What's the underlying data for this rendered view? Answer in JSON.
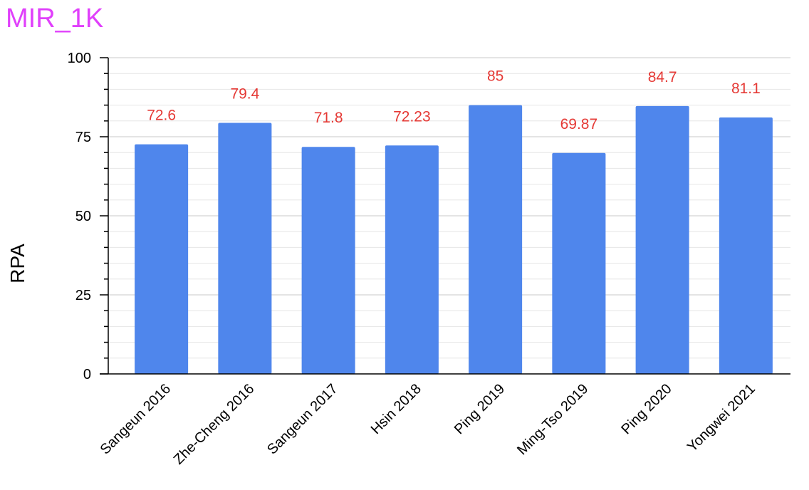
{
  "chart_data": {
    "type": "bar",
    "title": "MIR_1K",
    "xlabel": "",
    "ylabel": "RPA",
    "ylim": [
      0,
      100
    ],
    "yticks": [
      0,
      25,
      50,
      75,
      100
    ],
    "grid": true,
    "categories": [
      "Sangeun 2016",
      "Zhe-Cheng 2016",
      "Sangeun 2017",
      "Hsin 2018",
      "Ping 2019",
      "Ming-Tso 2019",
      "Ping 2020",
      "Yongwei 2021"
    ],
    "values": [
      72.6,
      79.4,
      71.8,
      72.23,
      85,
      69.87,
      84.7,
      81.1
    ],
    "data_labels": [
      "72.6",
      "79.4",
      "71.8",
      "72.23",
      "85",
      "69.87",
      "84.7",
      "81.1"
    ]
  },
  "colors": {
    "title": "#e040fb",
    "bar": "#4f86ec",
    "data_label": "#e53935",
    "grid": "#d0d0d0",
    "axis": "#000000"
  }
}
